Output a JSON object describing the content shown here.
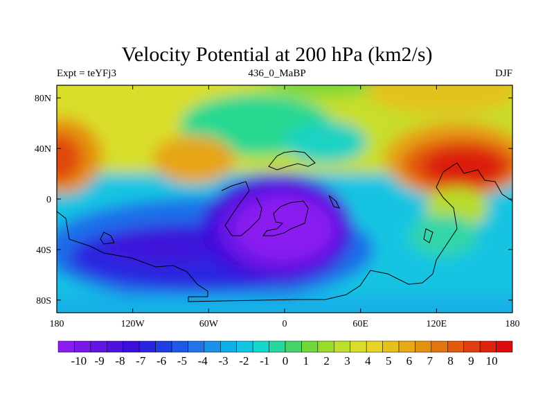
{
  "chart_data": {
    "type": "heatmap",
    "title": "Velocity Potential at 200 hPa (km2/s)",
    "subtitle_left": "Expt = teYFj3",
    "subtitle_center": "436_0_MaBP",
    "subtitle_right": "DJF",
    "xlim": [
      -180,
      180
    ],
    "ylim": [
      -90,
      90
    ],
    "x_ticks": [
      {
        "value": -180,
        "label": "180"
      },
      {
        "value": -120,
        "label": "120W"
      },
      {
        "value": -60,
        "label": "60W"
      },
      {
        "value": 0,
        "label": "0"
      },
      {
        "value": 60,
        "label": "60E"
      },
      {
        "value": 120,
        "label": "120E"
      },
      {
        "value": 180,
        "label": "180"
      }
    ],
    "y_ticks": [
      {
        "value": 80,
        "label": "80N"
      },
      {
        "value": 40,
        "label": "40N"
      },
      {
        "value": 0,
        "label": "0"
      },
      {
        "value": -40,
        "label": "40S"
      },
      {
        "value": -80,
        "label": "80S"
      }
    ],
    "colorbar_range": [
      -11,
      11
    ],
    "colorbar_labels": [
      "-10",
      "-9",
      "-8",
      "-7",
      "-6",
      "-5",
      "-4",
      "-3",
      "-2",
      "-1",
      "0",
      "1",
      "2",
      "3",
      "4",
      "5",
      "6",
      "7",
      "8",
      "9",
      "10"
    ],
    "colorbar_colors": [
      "#8a1cf0",
      "#7818ea",
      "#6315e5",
      "#4f12dd",
      "#3c10da",
      "#2a24e0",
      "#1f3ee4",
      "#1f58e6",
      "#2274e8",
      "#1a92e8",
      "#10aee8",
      "#10c6e2",
      "#14d8cc",
      "#26d8a0",
      "#44d66a",
      "#70d83c",
      "#98dc2a",
      "#bedf2c",
      "#d8de2a",
      "#e8d423",
      "#e8c01c",
      "#e8aa14",
      "#e69010",
      "#e47610",
      "#e25a10",
      "#e03e10",
      "#de2210",
      "#dc0c0c"
    ],
    "field_features": [
      {
        "name": "eastern-pacific-high",
        "lon": -178,
        "lat": 28,
        "value": 8.5
      },
      {
        "name": "north-atlantic-pos",
        "lon": -70,
        "lat": 28,
        "value": 6.2
      },
      {
        "name": "asia-pacific-max",
        "lon": 150,
        "lat": 25,
        "value": 9.8
      },
      {
        "name": "central-low",
        "lon": 5,
        "lat": -25,
        "value": -10.5
      },
      {
        "name": "southern-trough",
        "lon": -90,
        "lat": -45,
        "value": -7.5
      }
    ]
  }
}
